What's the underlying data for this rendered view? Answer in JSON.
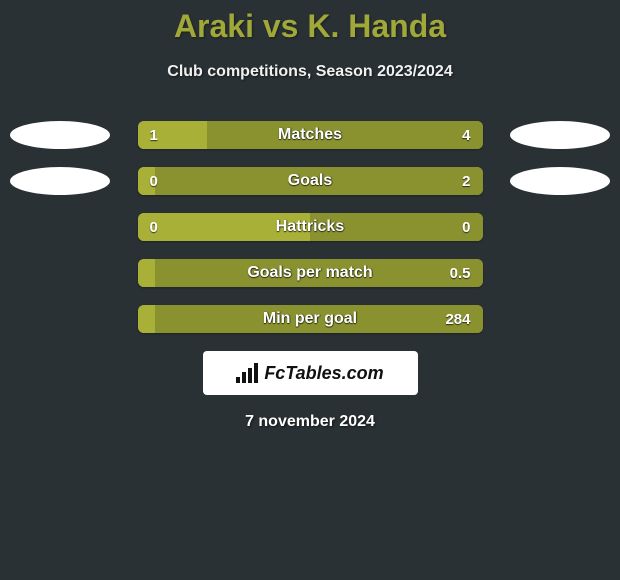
{
  "background_color": "#2a3135",
  "title": "Araki vs K. Handa",
  "title_color": "#a0a838",
  "title_fontsize": 32,
  "subtitle": "Club competitions, Season 2023/2024",
  "subtitle_color": "#f0f0f0",
  "subtitle_fontsize": 16,
  "bar_left_color": "#a8b038",
  "bar_right_color": "#8a9230",
  "bar_text_color": "#ffffff",
  "ellipse_color": "#ffffff",
  "stats": [
    {
      "label": "Matches",
      "left_value": "1",
      "right_value": "4",
      "left_pct": 20,
      "right_pct": 80,
      "show_left_ellipse": true,
      "show_right_ellipse": true
    },
    {
      "label": "Goals",
      "left_value": "0",
      "right_value": "2",
      "left_pct": 5,
      "right_pct": 95,
      "show_left_ellipse": true,
      "show_right_ellipse": true
    },
    {
      "label": "Hattricks",
      "left_value": "0",
      "right_value": "0",
      "left_pct": 50,
      "right_pct": 50,
      "show_left_ellipse": false,
      "show_right_ellipse": false
    },
    {
      "label": "Goals per match",
      "left_value": "",
      "right_value": "0.5",
      "left_pct": 5,
      "right_pct": 95,
      "show_left_ellipse": false,
      "show_right_ellipse": false
    },
    {
      "label": "Min per goal",
      "left_value": "",
      "right_value": "284",
      "left_pct": 5,
      "right_pct": 95,
      "show_left_ellipse": false,
      "show_right_ellipse": false
    }
  ],
  "logo_text": "FcTables.com",
  "date_text": "7 november 2024",
  "date_color": "#ffffff"
}
